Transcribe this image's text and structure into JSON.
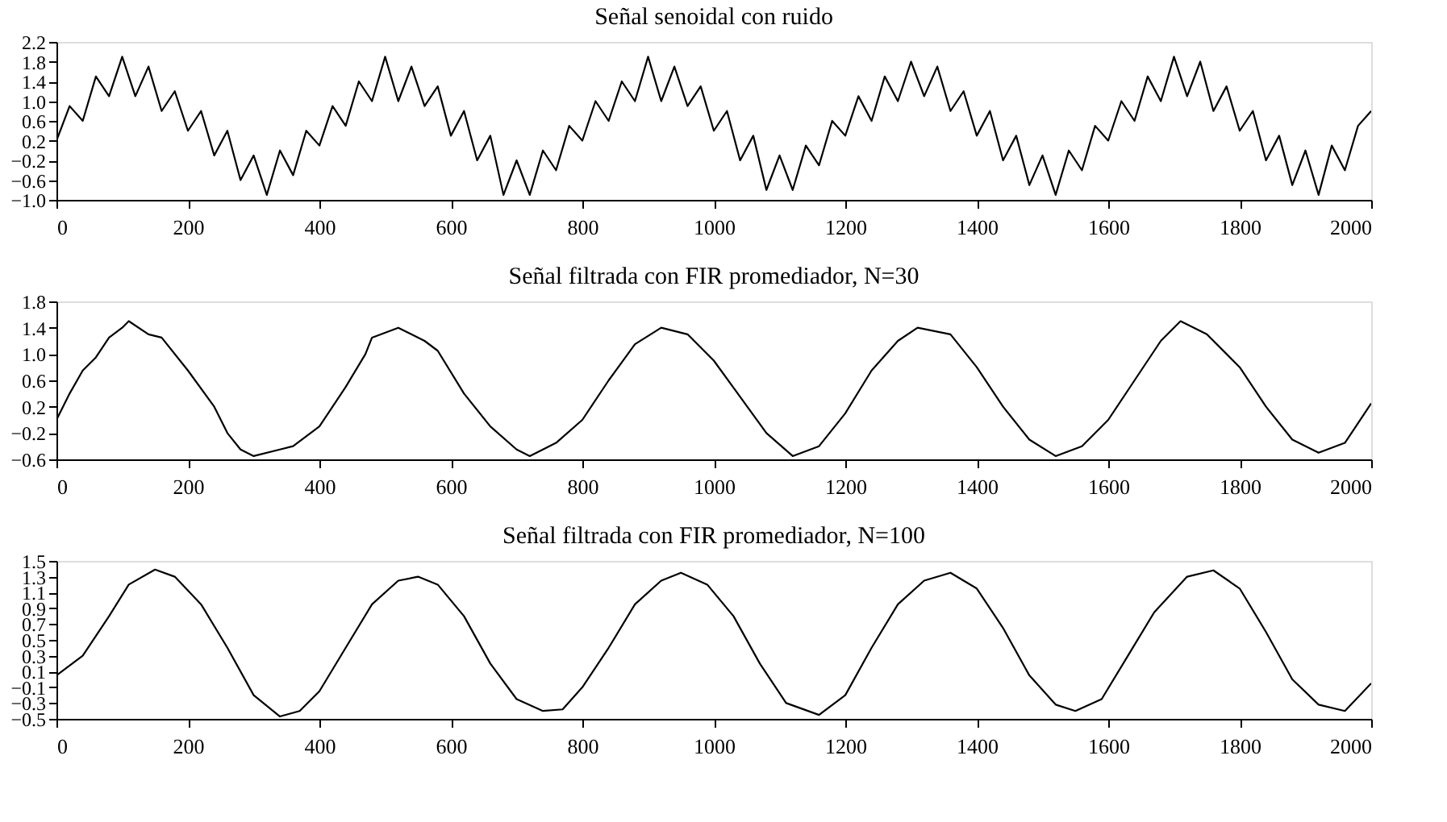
{
  "chart_data": [
    {
      "type": "line",
      "title": "Señal senoidal con ruido",
      "xlim": [
        0,
        2000
      ],
      "xticks": [
        0,
        200,
        400,
        600,
        800,
        1000,
        1200,
        1400,
        1600,
        1800,
        2000
      ],
      "ylim": [
        -1.0,
        2.2
      ],
      "yticks": [
        {
          "value": -1.0,
          "label": "−1.0"
        },
        {
          "value": -0.6,
          "label": "−0.6"
        },
        {
          "value": -0.2,
          "label": "−0.2"
        },
        {
          "value": 0.2,
          "label": "0.2"
        },
        {
          "value": 0.6,
          "label": "0.6"
        },
        {
          "value": 1.0,
          "label": "1.0"
        },
        {
          "value": 1.4,
          "label": "1.4"
        },
        {
          "value": 1.8,
          "label": "1.8"
        },
        {
          "value": 2.2,
          "label": "2.2"
        }
      ],
      "grid": false,
      "marker": "none",
      "line_style": "solid",
      "x": [
        0,
        20,
        40,
        60,
        80,
        100,
        120,
        140,
        160,
        180,
        200,
        220,
        240,
        260,
        280,
        300,
        320,
        340,
        360,
        380,
        400,
        420,
        440,
        460,
        480,
        500,
        520,
        540,
        560,
        580,
        600,
        620,
        640,
        660,
        680,
        700,
        720,
        740,
        760,
        780,
        800,
        820,
        840,
        860,
        880,
        900,
        920,
        940,
        960,
        980,
        1000,
        1020,
        1040,
        1060,
        1080,
        1100,
        1120,
        1140,
        1160,
        1180,
        1200,
        1220,
        1240,
        1260,
        1280,
        1300,
        1320,
        1340,
        1360,
        1380,
        1400,
        1420,
        1440,
        1460,
        1480,
        1500,
        1520,
        1540,
        1560,
        1580,
        1600,
        1620,
        1640,
        1660,
        1680,
        1700,
        1720,
        1740,
        1760,
        1780,
        1800,
        1820,
        1840,
        1860,
        1880,
        1900,
        1920,
        1940,
        1960,
        1980,
        2000
      ],
      "series": [
        {
          "color": "#000000",
          "values": [
            0.2,
            0.9,
            0.6,
            1.5,
            1.1,
            1.9,
            1.1,
            1.7,
            0.8,
            1.2,
            0.4,
            0.8,
            -0.1,
            0.4,
            -0.6,
            -0.1,
            -0.9,
            0.0,
            -0.5,
            0.4,
            0.1,
            0.9,
            0.5,
            1.4,
            1.0,
            1.9,
            1.0,
            1.7,
            0.9,
            1.3,
            0.3,
            0.8,
            -0.2,
            0.3,
            -0.9,
            -0.2,
            -0.9,
            0.0,
            -0.4,
            0.5,
            0.2,
            1.0,
            0.6,
            1.4,
            1.0,
            1.9,
            1.0,
            1.7,
            0.9,
            1.3,
            0.4,
            0.8,
            -0.2,
            0.3,
            -0.8,
            -0.1,
            -0.8,
            0.1,
            -0.3,
            0.6,
            0.3,
            1.1,
            0.6,
            1.5,
            1.0,
            1.8,
            1.1,
            1.7,
            0.8,
            1.2,
            0.3,
            0.8,
            -0.2,
            0.3,
            -0.7,
            -0.1,
            -0.9,
            0.0,
            -0.4,
            0.5,
            0.2,
            1.0,
            0.6,
            1.5,
            1.0,
            1.9,
            1.1,
            1.8,
            0.8,
            1.3,
            0.4,
            0.8,
            -0.2,
            0.3,
            -0.7,
            0.0,
            -0.9,
            0.1,
            -0.4,
            0.5,
            0.8
          ]
        }
      ]
    },
    {
      "type": "line",
      "title": "Señal filtrada con FIR promediador, N=30",
      "xlim": [
        0,
        2000
      ],
      "xticks": [
        0,
        200,
        400,
        600,
        800,
        1000,
        1200,
        1400,
        1600,
        1800,
        2000
      ],
      "ylim": [
        -0.6,
        1.8
      ],
      "yticks": [
        {
          "value": -0.6,
          "label": "−0.6"
        },
        {
          "value": -0.2,
          "label": "−0.2"
        },
        {
          "value": 0.2,
          "label": "0.2"
        },
        {
          "value": 0.6,
          "label": "0.6"
        },
        {
          "value": 1.0,
          "label": "1.0"
        },
        {
          "value": 1.4,
          "label": "1.4"
        },
        {
          "value": 1.8,
          "label": "1.8"
        }
      ],
      "grid": false,
      "marker": "none",
      "line_style": "solid",
      "x": [
        0,
        20,
        40,
        60,
        80,
        100,
        110,
        140,
        160,
        200,
        240,
        260,
        280,
        300,
        340,
        360,
        400,
        440,
        470,
        480,
        520,
        560,
        580,
        620,
        660,
        700,
        720,
        760,
        800,
        840,
        880,
        920,
        960,
        1000,
        1040,
        1080,
        1120,
        1160,
        1200,
        1240,
        1280,
        1310,
        1360,
        1400,
        1440,
        1480,
        1520,
        1560,
        1600,
        1640,
        1680,
        1710,
        1750,
        1800,
        1840,
        1880,
        1920,
        1960,
        2000
      ],
      "series": [
        {
          "color": "#000000",
          "values": [
            0.0,
            0.4,
            0.75,
            0.95,
            1.25,
            1.4,
            1.5,
            1.3,
            1.25,
            0.75,
            0.2,
            -0.2,
            -0.45,
            -0.55,
            -0.45,
            -0.4,
            -0.1,
            0.5,
            1.0,
            1.25,
            1.4,
            1.2,
            1.05,
            0.4,
            -0.1,
            -0.45,
            -0.55,
            -0.35,
            0.0,
            0.6,
            1.15,
            1.4,
            1.3,
            0.9,
            0.35,
            -0.2,
            -0.55,
            -0.4,
            0.1,
            0.75,
            1.2,
            1.4,
            1.3,
            0.8,
            0.2,
            -0.3,
            -0.55,
            -0.4,
            0.0,
            0.6,
            1.2,
            1.5,
            1.3,
            0.8,
            0.2,
            -0.3,
            -0.5,
            -0.35,
            0.25
          ]
        }
      ]
    },
    {
      "type": "line",
      "title": "Señal filtrada con FIR promediador, N=100",
      "xlim": [
        0,
        2000
      ],
      "xticks": [
        0,
        200,
        400,
        600,
        800,
        1000,
        1200,
        1400,
        1600,
        1800,
        2000
      ],
      "ylim": [
        -0.5,
        1.5
      ],
      "yticks": [
        {
          "value": -0.5,
          "label": "−0.5"
        },
        {
          "value": -0.3,
          "label": "−0.3"
        },
        {
          "value": -0.1,
          "label": "−0.1"
        },
        0.1,
        0.3,
        0.5,
        0.7,
        0.9,
        1.1,
        1.3,
        1.5
      ],
      "grid": false,
      "marker": "none",
      "line_style": "solid",
      "x": [
        0,
        40,
        80,
        110,
        150,
        180,
        220,
        260,
        300,
        340,
        370,
        400,
        440,
        480,
        520,
        550,
        580,
        620,
        660,
        700,
        740,
        770,
        800,
        840,
        880,
        920,
        950,
        990,
        1030,
        1070,
        1110,
        1160,
        1200,
        1240,
        1280,
        1320,
        1360,
        1400,
        1440,
        1480,
        1520,
        1550,
        1590,
        1630,
        1670,
        1720,
        1760,
        1800,
        1840,
        1880,
        1920,
        1960,
        2000
      ],
      "series": [
        {
          "color": "#000000",
          "values": [
            0.05,
            0.3,
            0.8,
            1.2,
            1.39,
            1.3,
            0.95,
            0.4,
            -0.2,
            -0.47,
            -0.4,
            -0.15,
            0.4,
            0.95,
            1.25,
            1.3,
            1.2,
            0.8,
            0.2,
            -0.25,
            -0.4,
            -0.38,
            -0.1,
            0.4,
            0.95,
            1.25,
            1.35,
            1.2,
            0.8,
            0.2,
            -0.3,
            -0.45,
            -0.2,
            0.4,
            0.95,
            1.25,
            1.35,
            1.15,
            0.65,
            0.05,
            -0.32,
            -0.4,
            -0.25,
            0.3,
            0.85,
            1.3,
            1.38,
            1.15,
            0.6,
            0.0,
            -0.32,
            -0.4,
            -0.05
          ]
        }
      ]
    }
  ]
}
